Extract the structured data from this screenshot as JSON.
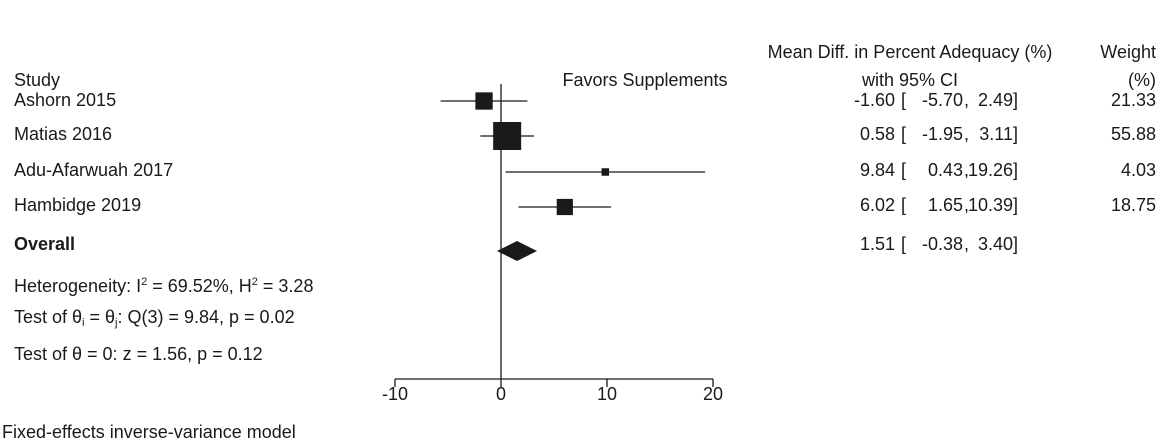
{
  "chart_data": {
    "type": "forest",
    "headers": {
      "study": "Study",
      "favors": "Favors Supplements",
      "effect_line1": "Mean Diff. in Percent Adequacy (%)",
      "effect_line2": "with 95% CI",
      "weight_line1": "Weight",
      "weight_line2": "(%)"
    },
    "studies": [
      {
        "name": "Ashorn 2015",
        "mean": -1.6,
        "lo": -5.7,
        "hi": 2.49,
        "mean_txt": "-1.60",
        "lo_txt": "-5.70",
        "hi_txt": "2.49",
        "weight": 21.33,
        "weight_txt": "21.33"
      },
      {
        "name": "Matias 2016",
        "mean": 0.58,
        "lo": -1.95,
        "hi": 3.11,
        "mean_txt": "0.58",
        "lo_txt": "-1.95",
        "hi_txt": "3.11",
        "weight": 55.88,
        "weight_txt": "55.88"
      },
      {
        "name": "Adu-Afarwuah 2017",
        "mean": 9.84,
        "lo": 0.43,
        "hi": 19.26,
        "mean_txt": "9.84",
        "lo_txt": "0.43",
        "hi_txt": "19.26",
        "weight": 4.03,
        "weight_txt": "4.03"
      },
      {
        "name": "Hambidge 2019",
        "mean": 6.02,
        "lo": 1.65,
        "hi": 10.39,
        "mean_txt": "6.02",
        "lo_txt": "1.65",
        "hi_txt": "10.39",
        "weight": 18.75,
        "weight_txt": "18.75"
      }
    ],
    "overall": {
      "name": "Overall",
      "mean": 1.51,
      "lo": -0.38,
      "hi": 3.4,
      "mean_txt": "1.51",
      "lo_txt": "-0.38",
      "hi_txt": "3.40"
    },
    "stats": {
      "heterogeneity_prefix": "Heterogeneity: I",
      "i2_sup": "2",
      "i2_value": " = 69.52%, H",
      "h2_sup": "2",
      "h2_value": " = 3.28",
      "q_prefix": "Test of θ",
      "q_sub_i": "i",
      "q_mid": " = θ",
      "q_sub_j": "j",
      "q_value": ": Q(3) = 9.84, p = 0.02",
      "z_test": "Test of θ = 0: z = 1.56, p = 0.12"
    },
    "x_axis": {
      "ticks": [
        -10,
        0,
        10,
        20
      ],
      "tick_labels": [
        "-10",
        "0",
        "10",
        "20"
      ],
      "xlim": [
        -10,
        20
      ]
    },
    "footnote": "Fixed-effects inverse-variance model"
  }
}
